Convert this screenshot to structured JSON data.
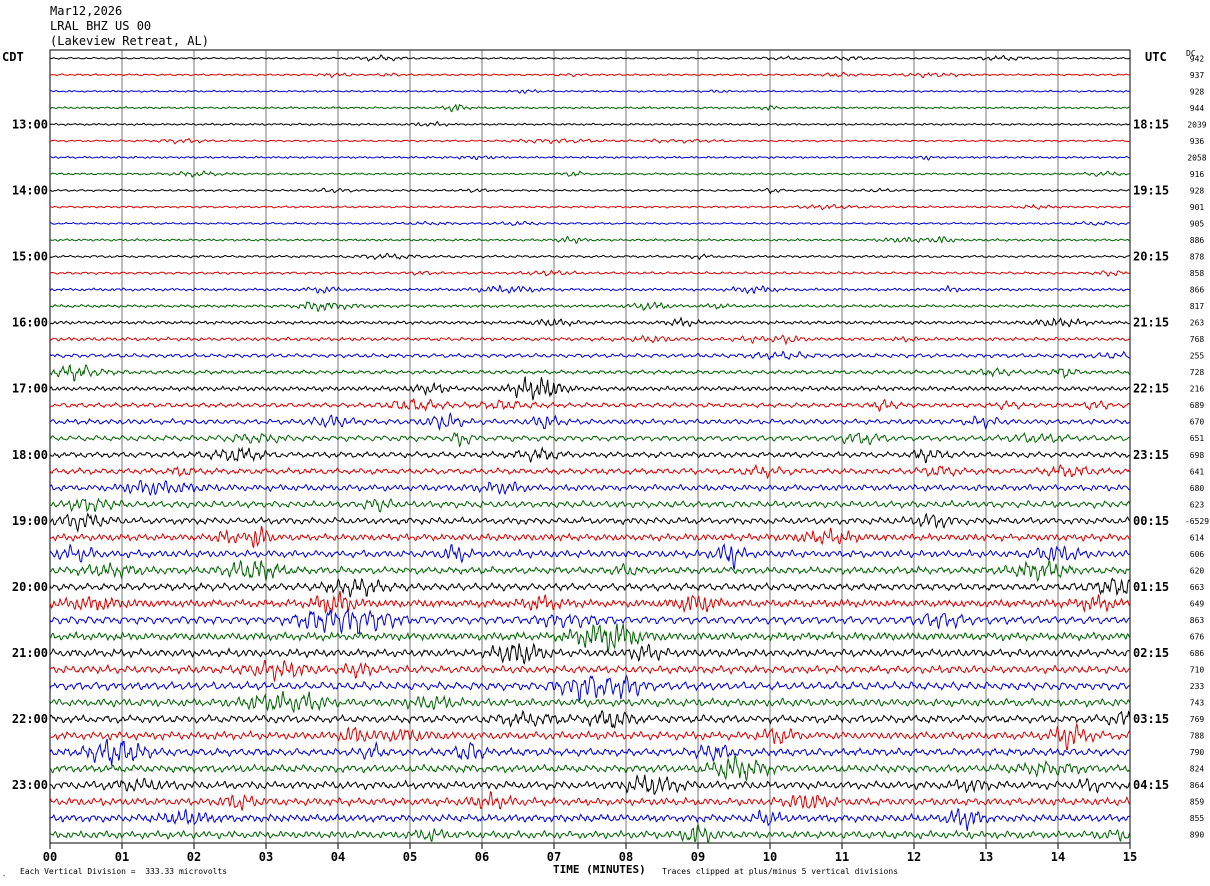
{
  "header": {
    "date": "Mar12,2026",
    "station": "LRAL BHZ US 00",
    "location": "(Lakeview Retreat, AL)"
  },
  "axes": {
    "left_tz": "CDT",
    "right_tz": "UTC",
    "dc_label": "DC",
    "xlabel": "TIME (MINUTES)",
    "corner_mark": "."
  },
  "footer": {
    "scale_note": "Each Vertical Division =  333.33 microvolts",
    "clip_note": "Traces clipped at plus/minus 5 vertical divisions"
  },
  "chart_data": {
    "type": "line",
    "xlabel": "TIME (MINUTES)",
    "xlim": [
      0,
      15
    ],
    "x_ticks": [
      "00",
      "01",
      "02",
      "03",
      "04",
      "05",
      "06",
      "07",
      "08",
      "09",
      "10",
      "11",
      "12",
      "13",
      "14",
      "15"
    ],
    "trace_colors": [
      "#000000",
      "#dd0000",
      "#0000dd",
      "#006400"
    ],
    "row_count": 48,
    "left_hour_labels": [
      {
        "row": 4,
        "label": "13:00"
      },
      {
        "row": 8,
        "label": "14:00"
      },
      {
        "row": 12,
        "label": "15:00"
      },
      {
        "row": 16,
        "label": "16:00"
      },
      {
        "row": 20,
        "label": "17:00"
      },
      {
        "row": 24,
        "label": "18:00"
      },
      {
        "row": 28,
        "label": "19:00"
      },
      {
        "row": 32,
        "label": "20:00"
      },
      {
        "row": 36,
        "label": "21:00"
      },
      {
        "row": 40,
        "label": "22:00"
      },
      {
        "row": 44,
        "label": "23:00"
      }
    ],
    "right_hour_labels": [
      {
        "row": 4,
        "label": "18:15"
      },
      {
        "row": 8,
        "label": "19:15"
      },
      {
        "row": 12,
        "label": "20:15"
      },
      {
        "row": 16,
        "label": "21:15"
      },
      {
        "row": 20,
        "label": "22:15"
      },
      {
        "row": 24,
        "label": "23:15"
      },
      {
        "row": 28,
        "label": "00:15"
      },
      {
        "row": 32,
        "label": "01:15"
      },
      {
        "row": 36,
        "label": "02:15"
      },
      {
        "row": 40,
        "label": "03:15"
      },
      {
        "row": 44,
        "label": "04:15"
      }
    ],
    "dc_offsets": [
      "942",
      "937",
      "928",
      "944",
      "2039",
      "936",
      "2058",
      "916",
      "928",
      "901",
      "905",
      "886",
      "878",
      "858",
      "866",
      "817",
      "263",
      "768",
      "255",
      "728",
      "216",
      "689",
      "670",
      "651",
      "698",
      "641",
      "680",
      "623",
      "-6529",
      "614",
      "606",
      "620",
      "663",
      "649",
      "863",
      "676",
      "686",
      "710",
      "233",
      "743",
      "769",
      "788",
      "790",
      "824",
      "864",
      "859",
      "855",
      "890"
    ],
    "amplitude_by_row": [
      0.8,
      0.8,
      0.8,
      0.9,
      0.9,
      0.8,
      0.9,
      0.9,
      0.9,
      0.9,
      0.9,
      1.0,
      1.1,
      1.1,
      1.2,
      1.3,
      1.5,
      1.6,
      1.8,
      1.8,
      2.1,
      2.1,
      2.4,
      2.5,
      2.6,
      2.7,
      2.8,
      3.0,
      3.0,
      3.1,
      3.2,
      3.2,
      3.3,
      3.4,
      3.6,
      3.5,
      3.5,
      3.5,
      3.6,
      3.5,
      3.5,
      3.5,
      3.4,
      3.4,
      3.5,
      3.4,
      3.4,
      3.3
    ]
  }
}
